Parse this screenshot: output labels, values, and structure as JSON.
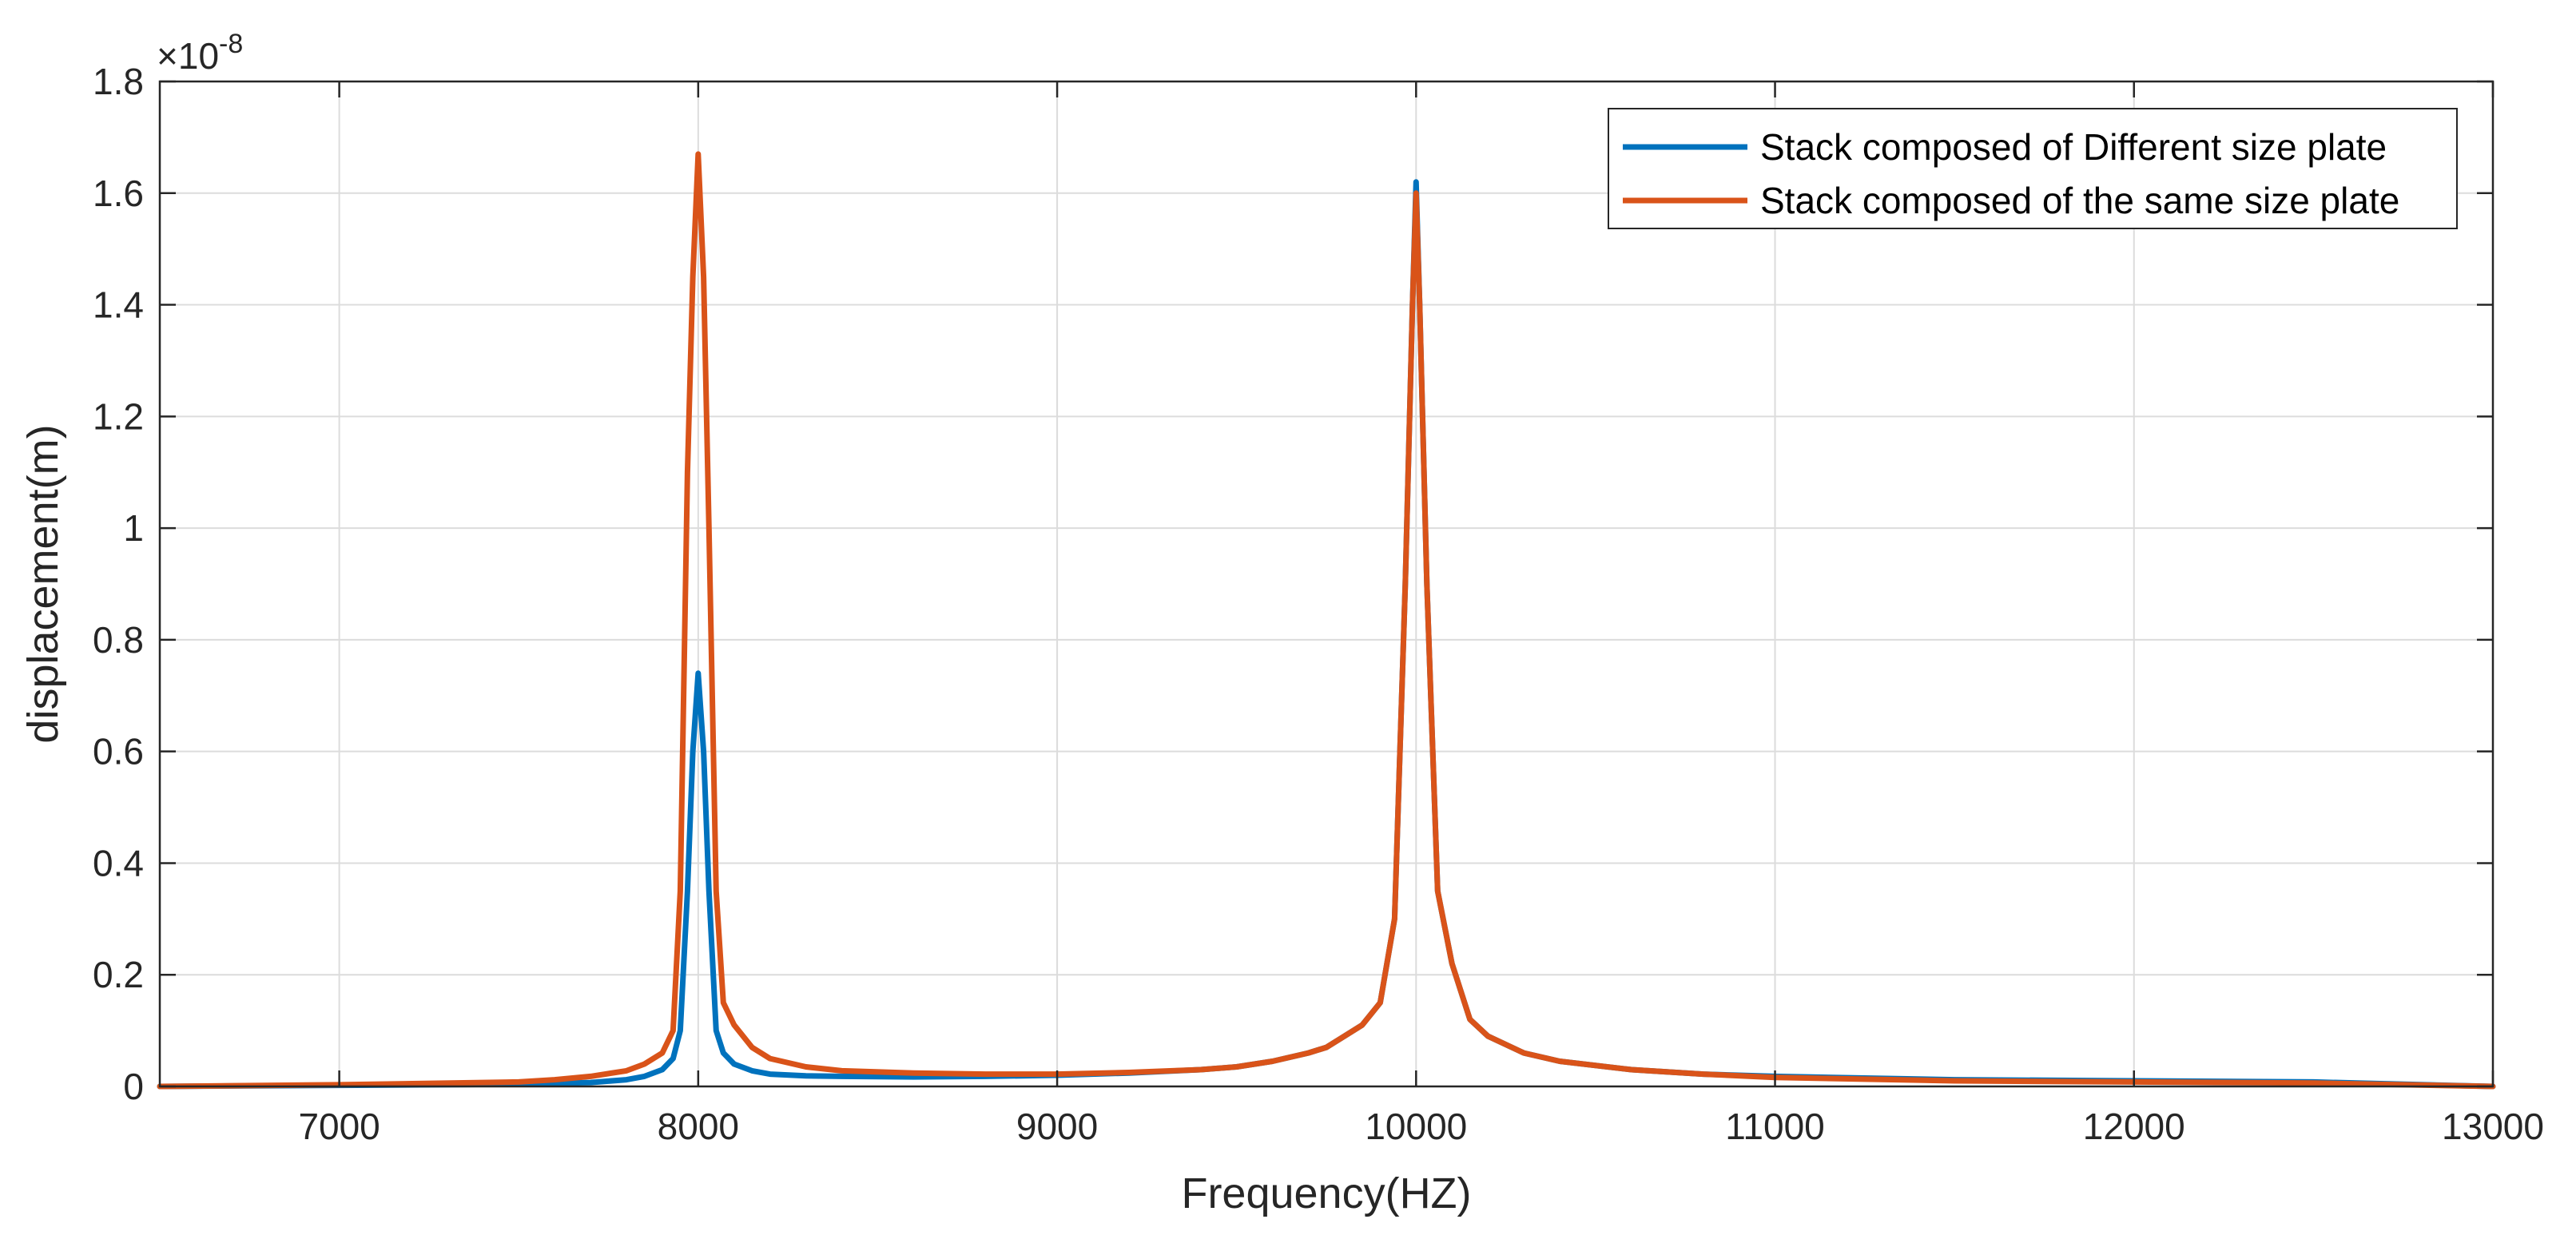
{
  "chart_data": {
    "type": "line",
    "title": "",
    "xlabel": "Frequency(HZ)",
    "ylabel": "displacement(m)",
    "y_multiplier_label": {
      "base": "×10",
      "exponent": "-8"
    },
    "xlim": [
      6500,
      13000
    ],
    "ylim": [
      0,
      1.8
    ],
    "xticks": [
      7000,
      8000,
      9000,
      10000,
      11000,
      12000,
      13000
    ],
    "xtick_labels": [
      "7000",
      "8000",
      "9000",
      "10000",
      "11000",
      "12000",
      "13000"
    ],
    "yticks": [
      0,
      0.2,
      0.4,
      0.6,
      0.8,
      1,
      1.2,
      1.4,
      1.6,
      1.8
    ],
    "ytick_labels": [
      "0",
      "0.2",
      "0.4",
      "0.6",
      "0.8",
      "1",
      "1.2",
      "1.4",
      "1.6",
      "1.8"
    ],
    "grid": true,
    "legend_position": "top-right",
    "series": [
      {
        "name": "Stack composed of Different size plate",
        "color": "#0072BD",
        "x": [
          6500,
          7000,
          7500,
          7700,
          7800,
          7850,
          7900,
          7930,
          7950,
          7970,
          7985,
          8000,
          8015,
          8030,
          8050,
          8070,
          8100,
          8150,
          8200,
          8300,
          8400,
          8600,
          8800,
          9000,
          9200,
          9400,
          9500,
          9600,
          9700,
          9750,
          9800,
          9850,
          9900,
          9940,
          9970,
          9990,
          10000,
          10010,
          10030,
          10060,
          10100,
          10150,
          10200,
          10300,
          10400,
          10600,
          10800,
          11000,
          11500,
          12000,
          12500,
          13000
        ],
        "y": [
          0,
          0.002,
          0.004,
          0.007,
          0.012,
          0.018,
          0.03,
          0.05,
          0.1,
          0.35,
          0.6,
          0.74,
          0.6,
          0.35,
          0.1,
          0.06,
          0.04,
          0.028,
          0.022,
          0.019,
          0.018,
          0.017,
          0.018,
          0.02,
          0.024,
          0.03,
          0.035,
          0.045,
          0.06,
          0.07,
          0.09,
          0.11,
          0.15,
          0.3,
          0.9,
          1.4,
          1.62,
          1.4,
          0.9,
          0.35,
          0.22,
          0.12,
          0.09,
          0.06,
          0.045,
          0.03,
          0.022,
          0.018,
          0.012,
          0.01,
          0.008,
          0
        ]
      },
      {
        "name": "Stack composed of the same size plate",
        "color": "#D95319",
        "x": [
          6500,
          7000,
          7500,
          7600,
          7700,
          7800,
          7850,
          7900,
          7930,
          7950,
          7970,
          7985,
          8000,
          8015,
          8030,
          8050,
          8070,
          8100,
          8150,
          8200,
          8300,
          8400,
          8600,
          8800,
          9000,
          9200,
          9400,
          9500,
          9600,
          9700,
          9750,
          9800,
          9850,
          9900,
          9940,
          9970,
          9990,
          10000,
          10010,
          10030,
          10060,
          10100,
          10150,
          10200,
          10300,
          10400,
          10600,
          10800,
          11000,
          11500,
          12000,
          12500,
          13000
        ],
        "y": [
          0,
          0.003,
          0.008,
          0.012,
          0.018,
          0.028,
          0.04,
          0.06,
          0.1,
          0.35,
          1.1,
          1.45,
          1.67,
          1.45,
          1.0,
          0.35,
          0.15,
          0.11,
          0.07,
          0.05,
          0.035,
          0.028,
          0.024,
          0.022,
          0.022,
          0.025,
          0.03,
          0.035,
          0.045,
          0.06,
          0.07,
          0.09,
          0.11,
          0.15,
          0.3,
          0.9,
          1.4,
          1.6,
          1.4,
          0.9,
          0.35,
          0.22,
          0.12,
          0.09,
          0.06,
          0.045,
          0.03,
          0.022,
          0.016,
          0.01,
          0.008,
          0.006,
          0
        ]
      }
    ]
  }
}
